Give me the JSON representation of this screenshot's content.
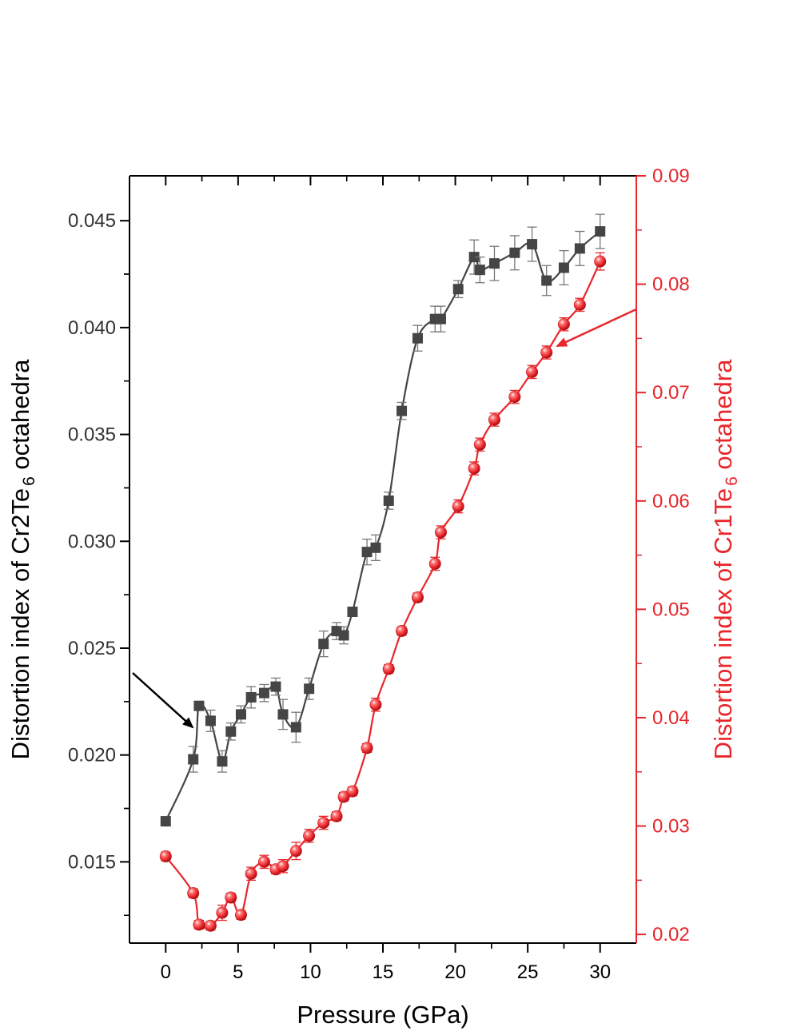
{
  "chart_data": {
    "type": "scatter",
    "x_axis": {
      "label": "Pressure (GPa)",
      "range": [
        -2.5,
        32.5
      ],
      "ticks": [
        "0",
        "5",
        "10",
        "15",
        "20",
        "25",
        "30"
      ]
    },
    "y_left": {
      "label_parts": [
        "Distortion index of Cr2Te",
        "6",
        " octahedra"
      ],
      "range": [
        0.0112,
        0.0471
      ],
      "ticks": [
        "0.015",
        "0.020",
        "0.025",
        "0.030",
        "0.035",
        "0.040",
        "0.045"
      ],
      "color": "#333333"
    },
    "y_right": {
      "label_parts": [
        "Distortion index of Cr1Te",
        "6",
        " octahedra"
      ],
      "range": [
        0.0192,
        0.09
      ],
      "ticks": [
        "0.02",
        "0.03",
        "0.04",
        "0.05",
        "0.06",
        "0.07",
        "0.08",
        "0.09"
      ],
      "color": "#e8262b"
    },
    "grid": false,
    "series": [
      {
        "axis": "left",
        "marker": "square",
        "color": "#444444",
        "points": [
          [
            0,
            0.0169
          ],
          [
            1.9,
            0.0198
          ],
          [
            2.3,
            0.0223
          ],
          [
            3.1,
            0.0216
          ],
          [
            3.9,
            0.0197
          ],
          [
            4.5,
            0.0211
          ],
          [
            5.2,
            0.0219
          ],
          [
            5.9,
            0.0227
          ],
          [
            6.8,
            0.0229
          ],
          [
            7.6,
            0.0232
          ],
          [
            8.1,
            0.0219
          ],
          [
            9.0,
            0.0213
          ],
          [
            9.9,
            0.0231
          ],
          [
            10.9,
            0.0252
          ],
          [
            11.8,
            0.0258
          ],
          [
            12.3,
            0.0256
          ],
          [
            12.9,
            0.0267
          ],
          [
            13.9,
            0.0295
          ],
          [
            14.5,
            0.0297
          ],
          [
            15.4,
            0.0319
          ],
          [
            16.3,
            0.0361
          ],
          [
            17.4,
            0.0395
          ],
          [
            18.6,
            0.0404
          ],
          [
            19.0,
            0.0404
          ],
          [
            20.2,
            0.0418
          ],
          [
            21.3,
            0.0433
          ],
          [
            21.7,
            0.0427
          ],
          [
            22.7,
            0.043
          ],
          [
            24.1,
            0.0435
          ],
          [
            25.3,
            0.0439
          ],
          [
            26.3,
            0.0422
          ],
          [
            27.5,
            0.0428
          ],
          [
            28.6,
            0.0437
          ],
          [
            30.0,
            0.0445
          ]
        ],
        "errors": [
          0.0002,
          0.0006,
          0.0002,
          0.0005,
          0.0005,
          0.0004,
          0.0004,
          0.0005,
          0.0004,
          0.0004,
          0.0007,
          0.0007,
          0.0005,
          0.0006,
          0.0004,
          0.0004,
          0.0002,
          0.0006,
          0.0006,
          0.0004,
          0.0004,
          0.0006,
          0.0006,
          0.0006,
          0.0004,
          0.0008,
          0.0006,
          0.0008,
          0.0008,
          0.0008,
          0.0007,
          0.0008,
          0.0008,
          0.0008
        ]
      },
      {
        "axis": "right",
        "marker": "sphere",
        "color": "#e8262b",
        "points": [
          [
            0,
            0.0272
          ],
          [
            1.9,
            0.0238
          ],
          [
            2.3,
            0.0209
          ],
          [
            3.1,
            0.0208
          ],
          [
            3.9,
            0.022
          ],
          [
            4.5,
            0.0234
          ],
          [
            5.2,
            0.0218
          ],
          [
            5.9,
            0.0256
          ],
          [
            6.8,
            0.0267
          ],
          [
            7.6,
            0.026
          ],
          [
            8.1,
            0.0263
          ],
          [
            9.0,
            0.0277
          ],
          [
            9.9,
            0.0291
          ],
          [
            10.9,
            0.0303
          ],
          [
            11.8,
            0.0309
          ],
          [
            12.3,
            0.0327
          ],
          [
            12.9,
            0.0332
          ],
          [
            13.9,
            0.0372
          ],
          [
            14.5,
            0.0412
          ],
          [
            15.4,
            0.0445
          ],
          [
            16.3,
            0.048
          ],
          [
            17.4,
            0.0511
          ],
          [
            18.6,
            0.0542
          ],
          [
            19.0,
            0.0571
          ],
          [
            20.2,
            0.0595
          ],
          [
            21.3,
            0.063
          ],
          [
            21.7,
            0.0652
          ],
          [
            22.7,
            0.0675
          ],
          [
            24.1,
            0.0696
          ],
          [
            25.3,
            0.0719
          ],
          [
            26.3,
            0.0737
          ],
          [
            27.5,
            0.0763
          ],
          [
            28.6,
            0.0781
          ],
          [
            30.0,
            0.0821
          ]
        ],
        "errors": [
          0.0004,
          0.0004,
          0.0004,
          0.0004,
          0.0007,
          0.0004,
          0.0004,
          0.0006,
          0.0006,
          0.0004,
          0.0006,
          0.0008,
          0.0006,
          0.0006,
          0.0004,
          0.0004,
          0.0004,
          0.0004,
          0.0006,
          0.0004,
          0.0004,
          0.0004,
          0.0006,
          0.0006,
          0.0006,
          0.0006,
          0.0006,
          0.0006,
          0.0006,
          0.0006,
          0.0006,
          0.0006,
          0.0006,
          0.0008
        ]
      }
    ]
  }
}
